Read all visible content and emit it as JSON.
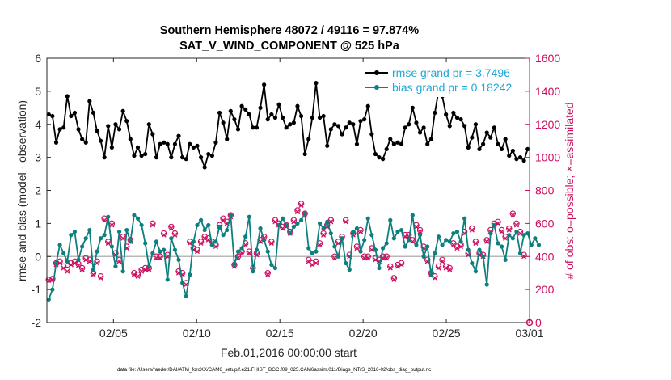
{
  "chart_data": {
    "type": "line",
    "title": "Southern Hemisphere 48072 / 49116 = 97.874%",
    "subtitle": "SAT_V_WIND_COMPONENT @ 525 hPa",
    "xlabel": "Feb.01,2016 00:00:00 start",
    "ylabel": "rmse and bias (model - observation)",
    "ylabel_right": "# of obs: o=possible; ×=assimilated",
    "footnote": "data file: /Users/raeder/DAI/ATM_forcXX/CAM6_setup/f.e21.FHIST_BGC.f09_025.CAM6assim.011/Diags_NTrS_2016-02/obs_diag_output.nc",
    "xlim": [
      0,
      29
    ],
    "ylim": [
      -2,
      6
    ],
    "ylim_right": [
      0,
      1600
    ],
    "x_ticks": [
      4,
      9,
      14,
      19,
      24,
      29
    ],
    "x_tick_labels": [
      "02/05",
      "02/10",
      "02/15",
      "02/20",
      "02/25",
      "03/01"
    ],
    "y_ticks": [
      -2,
      -1,
      0,
      1,
      2,
      3,
      4,
      5,
      6
    ],
    "y_tick_labels": [
      "-2",
      "-1",
      "0",
      "1",
      "2",
      "3",
      "4",
      "5",
      "6"
    ],
    "y2_ticks": [
      0,
      200,
      400,
      600,
      800,
      1000,
      1200,
      1400,
      1600
    ],
    "y2_tick_labels": [
      "0",
      "200",
      "400",
      "600",
      "800",
      "1000",
      "1200",
      "1400",
      "1600"
    ],
    "colors": {
      "rmse": "#000000",
      "bias": "#0e7f7f",
      "obs": "#cc1060",
      "legend_text": "#1ea8d8",
      "zero": "#b8b8b8"
    },
    "series": [
      {
        "name": "rmse grand pr = 3.7496",
        "role": "rmse",
        "values": [
          4.3,
          4.25,
          3.45,
          3.85,
          3.9,
          4.85,
          4.25,
          4.35,
          3.85,
          3.55,
          3.45,
          4.7,
          4.35,
          3.8,
          3.5,
          3.0,
          3.95,
          3.3,
          4.0,
          3.85,
          4.4,
          4.1,
          3.55,
          3.05,
          3.3,
          3.05,
          3.1,
          4.0,
          3.7,
          3.0,
          3.4,
          3.45,
          3.4,
          3.0,
          3.4,
          3.65,
          3.0,
          2.95,
          3.4,
          3.3,
          3.35,
          3.0,
          2.7,
          3.1,
          3.05,
          3.45,
          4.35,
          4.05,
          3.55,
          4.4,
          4.15,
          3.85,
          4.55,
          4.45,
          4.3,
          3.9,
          3.9,
          4.5,
          5.2,
          4.15,
          4.3,
          4.2,
          4.6,
          4.2,
          3.9,
          4.0,
          4.05,
          4.55,
          4.25,
          3.1,
          3.55,
          4.2,
          5.25,
          4.2,
          4.25,
          3.35,
          3.85,
          4.0,
          3.95,
          3.7,
          3.9,
          4.05,
          4.0,
          3.4,
          4.1,
          4.15,
          4.55,
          3.7,
          3.1,
          3.0,
          2.95,
          3.25,
          3.55,
          3.4,
          3.45,
          3.4,
          3.9,
          4.0,
          4.5,
          4.05,
          3.75,
          3.9,
          3.4,
          3.55,
          4.35,
          5.0,
          4.85,
          4.3,
          3.95,
          4.35,
          4.2,
          4.15,
          3.95,
          3.3,
          3.6,
          4.0,
          3.25,
          3.4,
          3.75,
          3.6,
          3.9,
          3.4,
          3.25,
          3.55,
          3.05,
          3.2,
          2.95,
          3.0,
          2.9,
          3.25
        ]
      },
      {
        "name": "bias grand pr = 0.18242",
        "role": "bias",
        "values": [
          -1.3,
          -1.0,
          -0.2,
          0.35,
          0.1,
          -0.15,
          0.65,
          0.75,
          -0.1,
          0.3,
          0.55,
          0.8,
          -0.4,
          0.15,
          0.55,
          0.65,
          1.2,
          0.3,
          -0.3,
          0.75,
          -0.45,
          0.8,
          0.45,
          1.25,
          1.15,
          0.95,
          0.4,
          -0.3,
          0.1,
          0.45,
          0.15,
          0.2,
          -0.7,
          0.55,
          0.2,
          -0.1,
          -0.8,
          -1.2,
          -0.55,
          0.45,
          0.95,
          1.1,
          0.8,
          0.95,
          0.35,
          0.45,
          0.9,
          0.65,
          0.8,
          1.25,
          -0.25,
          0.15,
          0.25,
          0.6,
          1.2,
          -0.45,
          0.2,
          0.85,
          0.5,
          0.15,
          -0.25,
          -0.35,
          0.95,
          1.15,
          0.95,
          0.7,
          0.9,
          1.0,
          1.1,
          1.3,
          0.25,
          0.1,
          0.15,
          1.0,
          0.85,
          1.05,
          0.7,
          0.3,
          0.0,
          0.55,
          -0.2,
          -0.4,
          0.75,
          0.85,
          0.15,
          0.5,
          1.15,
          0.65,
          0.2,
          -0.35,
          0.25,
          0.4,
          1.1,
          0.55,
          0.75,
          0.8,
          0.3,
          0.5,
          1.25,
          0.35,
          0.65,
          0.0,
          0.3,
          -0.55,
          0.1,
          0.6,
          0.35,
          0.5,
          0.45,
          0.7,
          0.75,
          0.45,
          1.15,
          0.2,
          -0.2,
          -0.45,
          0.2,
          0.0,
          -0.85,
          0.7,
          0.95,
          0.4,
          0.3,
          -0.1,
          0.65,
          0.55,
          0.75,
          0.1,
          0.65,
          0.7,
          0.35,
          0.55,
          0.35
        ]
      },
      {
        "name": "# of obs possible",
        "role": "possible",
        "values": [
          260,
          265,
          360,
          370,
          340,
          320,
          360,
          370,
          355,
          330,
          390,
          380,
          300,
          370,
          280,
          630,
          490,
          600,
          420,
          380,
          520,
          460,
          500,
          300,
          290,
          320,
          330,
          330,
          600,
          400,
          400,
          540,
          410,
          580,
          540,
          310,
          300,
          240,
          490,
          450,
          440,
          490,
          520,
          510,
          490,
          470,
          590,
          630,
          610,
          650,
          350,
          400,
          430,
          480,
          430,
          330,
          420,
          500,
          520,
          300,
          490,
          620,
          600,
          580,
          590,
          550,
          620,
          680,
          720,
          660,
          380,
          360,
          370,
          480,
          540,
          590,
          620,
          400,
          490,
          520,
          620,
          410,
          540,
          460,
          560,
          400,
          400,
          450,
          390,
          380,
          400,
          400,
          340,
          270,
          350,
          360,
          530,
          530,
          500,
          590,
          560,
          460,
          380,
          300,
          280,
          340,
          380,
          340,
          330,
          480,
          460,
          470,
          550,
          420,
          570,
          490,
          420,
          410,
          500,
          560,
          600,
          610,
          560,
          520,
          570,
          660,
          600,
          550,
          410
        ]
      },
      {
        "name": "# of obs assimilated",
        "role": "assimilated",
        "values": [
          255,
          260,
          350,
          360,
          330,
          310,
          350,
          360,
          345,
          320,
          380,
          370,
          290,
          360,
          270,
          620,
          480,
          590,
          410,
          370,
          510,
          450,
          490,
          290,
          280,
          310,
          320,
          320,
          590,
          390,
          390,
          530,
          400,
          570,
          530,
          300,
          290,
          230,
          480,
          440,
          430,
          480,
          510,
          500,
          480,
          460,
          580,
          620,
          600,
          640,
          340,
          390,
          420,
          470,
          420,
          320,
          410,
          490,
          510,
          290,
          480,
          610,
          590,
          570,
          580,
          540,
          610,
          670,
          710,
          650,
          370,
          350,
          360,
          470,
          530,
          580,
          610,
          390,
          480,
          510,
          610,
          400,
          530,
          450,
          550,
          390,
          390,
          440,
          380,
          370,
          390,
          390,
          330,
          260,
          340,
          350,
          520,
          520,
          490,
          580,
          550,
          450,
          370,
          290,
          270,
          330,
          370,
          330,
          320,
          470,
          450,
          460,
          540,
          410,
          560,
          480,
          410,
          400,
          490,
          550,
          590,
          600,
          550,
          510,
          560,
          650,
          590,
          540,
          400
        ]
      }
    ]
  }
}
